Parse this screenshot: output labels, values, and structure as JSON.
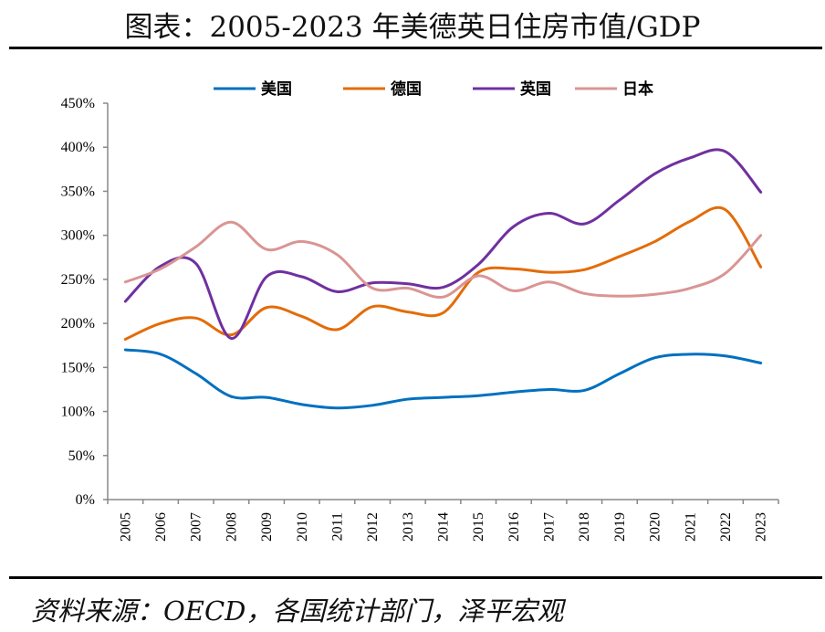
{
  "title": "图表：2005-2023 年美德英日住房市值/GDP",
  "source": "资料来源：OECD，各国统计部门，泽平宏观",
  "chart_data": {
    "type": "line",
    "title": "图表：2005-2023 年美德英日住房市值/GDP",
    "xlabel": "",
    "ylabel": "",
    "ylim": [
      0,
      450
    ],
    "y_ticks": [
      "0%",
      "50%",
      "100%",
      "150%",
      "200%",
      "250%",
      "300%",
      "350%",
      "400%",
      "450%"
    ],
    "grid": false,
    "legend": "top",
    "smooth": true,
    "categories": [
      "2005",
      "2006",
      "2007",
      "2008",
      "2009",
      "2010",
      "2011",
      "2012",
      "2013",
      "2014",
      "2015",
      "2016",
      "2017",
      "2018",
      "2019",
      "2020",
      "2021",
      "2022",
      "2023"
    ],
    "series": [
      {
        "name": "美国",
        "color": "#0070C0",
        "values": [
          170,
          165,
          143,
          117,
          116,
          108,
          104,
          107,
          114,
          116,
          118,
          122,
          125,
          124,
          143,
          161,
          165,
          163,
          155
        ]
      },
      {
        "name": "德国",
        "color": "#E36C09",
        "values": [
          182,
          200,
          206,
          187,
          218,
          208,
          193,
          219,
          213,
          212,
          258,
          262,
          258,
          261,
          276,
          293,
          316,
          329,
          264
        ]
      },
      {
        "name": "英国",
        "color": "#7030A0",
        "values": [
          225,
          265,
          268,
          183,
          253,
          253,
          236,
          246,
          245,
          241,
          267,
          310,
          325,
          313,
          340,
          370,
          388,
          395,
          349
        ]
      },
      {
        "name": "日本",
        "color": "#D99594",
        "values": [
          247,
          262,
          287,
          315,
          284,
          293,
          278,
          240,
          240,
          230,
          254,
          237,
          247,
          234,
          231,
          233,
          240,
          257,
          300
        ]
      }
    ]
  }
}
